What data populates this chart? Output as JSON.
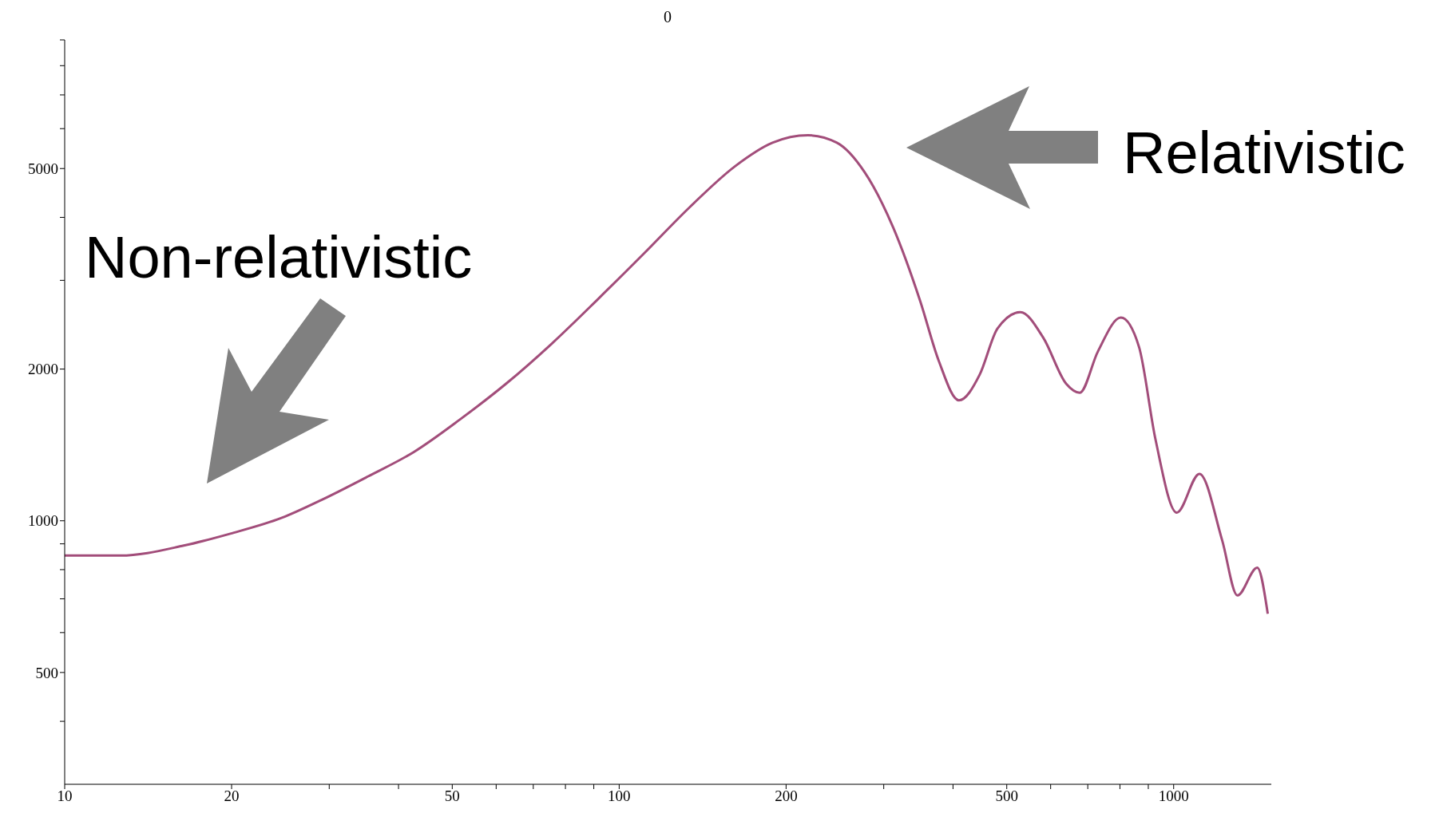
{
  "chart_data": {
    "type": "line",
    "title": "0",
    "annotations": [
      "Non-relativistic",
      "Relativistic"
    ],
    "log": "xy",
    "grid": false,
    "legend": false,
    "marker": "none",
    "line_style": "solid",
    "xlim": [
      10,
      1500
    ],
    "ylim": [
      300,
      9000
    ],
    "xticks": [
      10,
      20,
      {
        "value": 30,
        "label": null
      },
      {
        "value": 40,
        "label": null
      },
      50,
      {
        "value": 60,
        "label": null
      },
      {
        "value": 70,
        "label": null
      },
      {
        "value": 80,
        "label": null
      },
      {
        "value": 90,
        "label": null
      },
      100,
      200,
      {
        "value": 300,
        "label": null
      },
      {
        "value": 400,
        "label": null
      },
      500,
      {
        "value": 600,
        "label": null
      },
      {
        "value": 700,
        "label": null
      },
      {
        "value": 800,
        "label": null
      },
      {
        "value": 900,
        "label": null
      },
      1000
    ],
    "yticks": [
      {
        "value": 400,
        "label": null
      },
      500,
      {
        "value": 600,
        "label": null
      },
      {
        "value": 700,
        "label": null
      },
      {
        "value": 800,
        "label": null
      },
      {
        "value": 900,
        "label": null
      },
      1000,
      2000,
      {
        "value": 3000,
        "label": null
      },
      {
        "value": 4000,
        "label": null
      },
      5000,
      {
        "value": 6000,
        "label": null
      },
      {
        "value": 7000,
        "label": null
      },
      {
        "value": 8000,
        "label": null
      },
      {
        "value": 9000,
        "label": null
      }
    ],
    "series": [
      {
        "color": "#a24d7a",
        "x": [
          10,
          12.6,
          16.4,
          19.9,
          24.6,
          29.1,
          35.2,
          42.7,
          51.6,
          62.5,
          75.7,
          91.6,
          111,
          134,
          162,
          189,
          219,
          247,
          277,
          312,
          349,
          377,
          410,
          447,
          481,
          529,
          582,
          640,
          677,
          730,
          803,
          866,
          927,
          1013,
          1113,
          1223,
          1303,
          1415,
          1478
        ],
        "values": [
          853,
          853,
          893,
          943,
          1013,
          1101,
          1224,
          1371,
          1588,
          1870,
          2250,
          2754,
          3397,
          4190,
          5058,
          5626,
          5821,
          5626,
          4920,
          3819,
          2730,
          2077,
          1734,
          1951,
          2406,
          2594,
          2307,
          1870,
          1795,
          2167,
          2530,
          2213,
          1453,
          1038,
          1239,
          915,
          711,
          807,
          654
        ]
      }
    ]
  }
}
